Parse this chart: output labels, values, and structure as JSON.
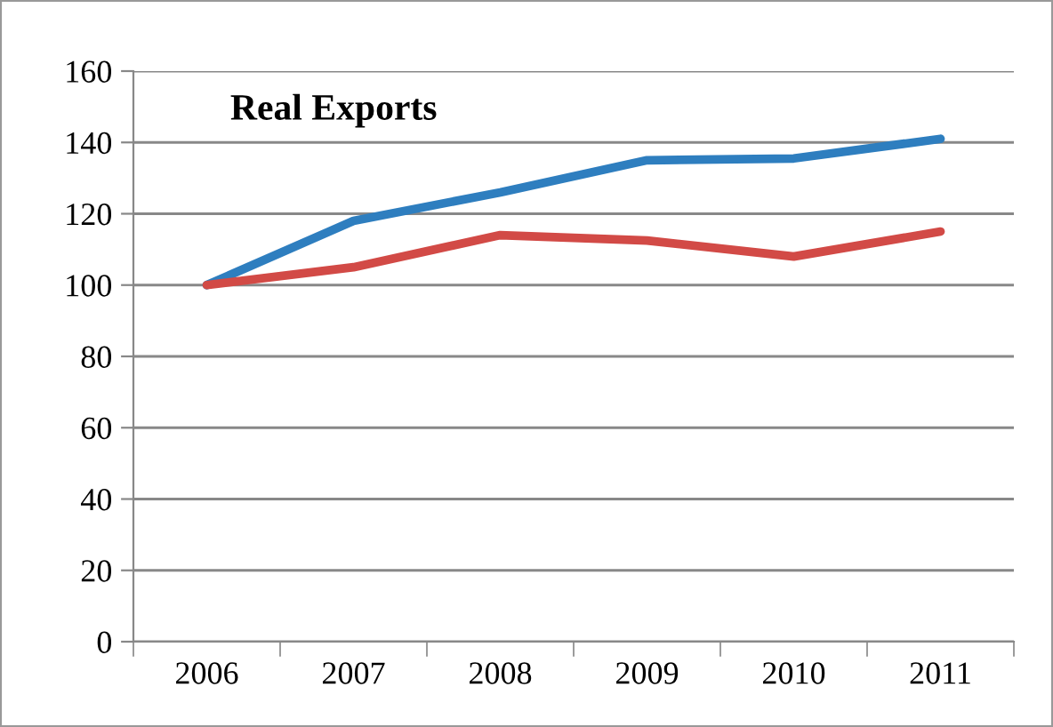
{
  "chart_data": {
    "type": "line",
    "title": "Real Exports",
    "categories": [
      "2006",
      "2007",
      "2008",
      "2009",
      "2010",
      "2011"
    ],
    "series": [
      {
        "color": "#2e7ebf",
        "values": [
          100,
          118,
          126,
          135,
          135.5,
          141
        ]
      },
      {
        "color": "#d24a46",
        "values": [
          100,
          105,
          114,
          112.5,
          108,
          115
        ]
      }
    ],
    "ylim": [
      0,
      160
    ],
    "yticks": [
      0,
      20,
      40,
      60,
      80,
      100,
      120,
      140,
      160
    ],
    "grid": "y",
    "legend": false,
    "marker": "none",
    "line_style": "solid"
  }
}
